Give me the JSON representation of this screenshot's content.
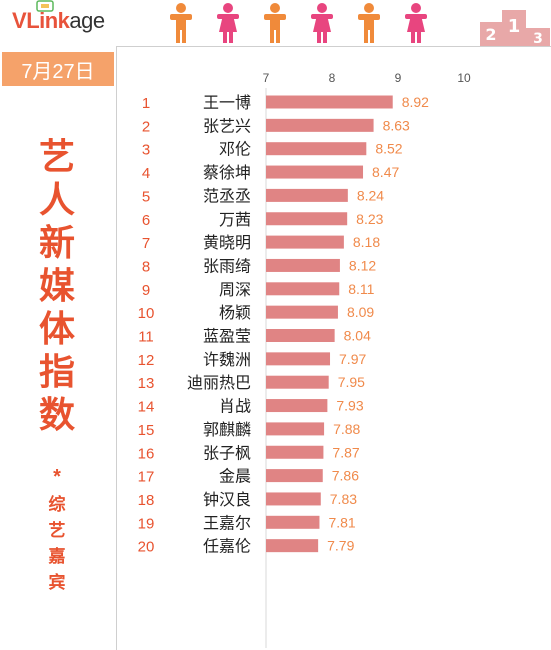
{
  "brand": {
    "v": "V",
    "lk": "Link",
    "rest": "age"
  },
  "date": "7月27日",
  "vtitle": [
    "艺",
    "人",
    "新",
    "媒",
    "体",
    "指",
    "数"
  ],
  "star": "*",
  "vsub": [
    "综",
    "艺",
    "嘉",
    "宾"
  ],
  "colors": {
    "bar": "#e08484",
    "rank": "#e8532f",
    "value": "#f08a4b",
    "accent": "#f5a26a",
    "male": "#f08a3a",
    "female": "#e8457f"
  },
  "chart_data": {
    "type": "bar",
    "orientation": "horizontal",
    "xticks": [
      7,
      8,
      9,
      10
    ],
    "xlim": [
      7,
      10
    ],
    "ranks": [
      1,
      2,
      3,
      4,
      5,
      6,
      7,
      8,
      9,
      10,
      11,
      12,
      13,
      14,
      15,
      16,
      17,
      18,
      19,
      20
    ],
    "categories": [
      "王一博",
      "张艺兴",
      "邓伦",
      "蔡徐坤",
      "范丞丞",
      "万茜",
      "黄晓明",
      "张雨绮",
      "周深",
      "杨颖",
      "蓝盈莹",
      "许魏洲",
      "迪丽热巴",
      "肖战",
      "郭麒麟",
      "张子枫",
      "金晨",
      "钟汉良",
      "王嘉尔",
      "任嘉伦"
    ],
    "values": [
      8.92,
      8.63,
      8.52,
      8.47,
      8.24,
      8.23,
      8.18,
      8.12,
      8.11,
      8.09,
      8.04,
      7.97,
      7.95,
      7.93,
      7.88,
      7.87,
      7.86,
      7.83,
      7.81,
      7.79
    ],
    "value_labels": [
      "8.92",
      "8.63",
      "8.52",
      "8.47",
      "8.24",
      "8.23",
      "8.18",
      "8.12",
      "8.11",
      "8.09",
      "8.04",
      "7.97",
      "7.95",
      "7.93",
      "7.88",
      "7.87",
      "7.86",
      "7.83",
      "7.81",
      "7.79"
    ],
    "grid": false,
    "legend": "none"
  }
}
